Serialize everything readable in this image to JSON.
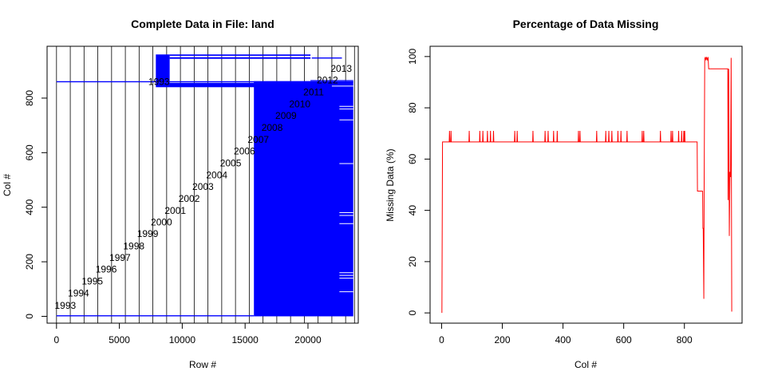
{
  "chart_data": [
    {
      "type": "heatmap",
      "title": "Complete Data in File: land",
      "xlabel": "Row #",
      "ylabel": "Col #",
      "xlim": [
        -750,
        24000
      ],
      "ylim": [
        -25,
        990
      ],
      "xticks": [
        0,
        5000,
        10000,
        15000,
        20000
      ],
      "yticks": [
        0,
        200,
        400,
        600,
        800
      ],
      "color": "#0000ff",
      "year_boundaries": [
        0,
        1095,
        2190,
        3285,
        4380,
        5475,
        6570,
        7665,
        8760,
        9855,
        10950,
        12045,
        13140,
        14235,
        15330,
        16425,
        17520,
        18615,
        19710,
        20805,
        21900,
        22995,
        23700
      ],
      "years": [
        {
          "label": "1993",
          "row": 700,
          "col": 40
        },
        {
          "label": "1994",
          "row": 1750,
          "col": 85
        },
        {
          "label": "1995",
          "row": 2850,
          "col": 128
        },
        {
          "label": "1996",
          "row": 3950,
          "col": 172
        },
        {
          "label": "1997",
          "row": 5050,
          "col": 215
        },
        {
          "label": "1998",
          "row": 6150,
          "col": 258
        },
        {
          "label": "1999",
          "row": 7250,
          "col": 302
        },
        {
          "label": "2000",
          "row": 8350,
          "col": 345
        },
        {
          "label": "2001",
          "row": 9450,
          "col": 388
        },
        {
          "label": "2002",
          "row": 10550,
          "col": 432
        },
        {
          "label": "2003",
          "row": 11650,
          "col": 475
        },
        {
          "label": "2004",
          "row": 12750,
          "col": 518
        },
        {
          "label": "2005",
          "row": 13850,
          "col": 562
        },
        {
          "label": "2006",
          "row": 14950,
          "col": 605
        },
        {
          "label": "2007",
          "row": 16050,
          "col": 648
        },
        {
          "label": "2008",
          "row": 17150,
          "col": 692
        },
        {
          "label": "2009",
          "row": 18250,
          "col": 735
        },
        {
          "label": "2010",
          "row": 19350,
          "col": 778
        },
        {
          "label": "2011",
          "row": 20450,
          "col": 822
        },
        {
          "label": "2012",
          "row": 21550,
          "col": 865
        },
        {
          "label": "2013",
          "row": 22650,
          "col": 908
        }
      ],
      "overlap_label": {
        "label": "1993",
        "row": 8150,
        "col": 860
      },
      "data_blocks": [
        {
          "x0": 0,
          "x1": 23600,
          "y0": 858,
          "y1": 862
        },
        {
          "x0": 0,
          "x1": 15700,
          "y0": 0,
          "y1": 4
        },
        {
          "x0": 15700,
          "x1": 23600,
          "y0": 0,
          "y1": 862
        },
        {
          "x0": 7900,
          "x1": 20200,
          "y0": 840,
          "y1": 856
        },
        {
          "x0": 7900,
          "x1": 9000,
          "y0": 856,
          "y1": 960
        },
        {
          "x0": 9000,
          "x1": 20200,
          "y0": 955,
          "y1": 960
        },
        {
          "x0": 9000,
          "x1": 20200,
          "y0": 944,
          "y1": 950
        },
        {
          "x0": 20300,
          "x1": 22700,
          "y0": 945,
          "y1": 949
        },
        {
          "x0": 20200,
          "x1": 23600,
          "y0": 864,
          "y1": 866
        }
      ],
      "gap_lines": [
        {
          "x0": 22500,
          "x1": 23600,
          "y": 760
        },
        {
          "x0": 22500,
          "x1": 23600,
          "y": 770
        },
        {
          "x0": 22500,
          "x1": 23600,
          "y": 720
        },
        {
          "x0": 22500,
          "x1": 23600,
          "y": 560
        },
        {
          "x0": 22500,
          "x1": 23600,
          "y": 380
        },
        {
          "x0": 22500,
          "x1": 23600,
          "y": 370
        },
        {
          "x0": 22500,
          "x1": 23600,
          "y": 340
        },
        {
          "x0": 22500,
          "x1": 23600,
          "y": 160
        },
        {
          "x0": 22500,
          "x1": 23600,
          "y": 150
        },
        {
          "x0": 22500,
          "x1": 23600,
          "y": 140
        },
        {
          "x0": 22500,
          "x1": 23600,
          "y": 90
        },
        {
          "x0": 21900,
          "x1": 23600,
          "y": 844
        }
      ]
    },
    {
      "type": "line",
      "title": "Percentage of Data Missing",
      "xlabel": "Col #",
      "ylabel": "Missing Data (%)",
      "xlim": [
        -38,
        990
      ],
      "ylim": [
        -4,
        104
      ],
      "xticks": [
        0,
        200,
        400,
        600,
        800
      ],
      "yticks": [
        0,
        20,
        40,
        60,
        80,
        100
      ],
      "color": "#ff0000",
      "points": [
        [
          1,
          0
        ],
        [
          3,
          66.7
        ],
        [
          25,
          66.7
        ],
        [
          26,
          71
        ],
        [
          27,
          66.7
        ],
        [
          30,
          66.7
        ],
        [
          31,
          71
        ],
        [
          32,
          66.7
        ],
        [
          90,
          66.7
        ],
        [
          91,
          71
        ],
        [
          92,
          66.7
        ],
        [
          125,
          66.7
        ],
        [
          126,
          71
        ],
        [
          127,
          66.7
        ],
        [
          135,
          66.7
        ],
        [
          136,
          71
        ],
        [
          137,
          66.7
        ],
        [
          150,
          66.7
        ],
        [
          151,
          71
        ],
        [
          152,
          66.7
        ],
        [
          160,
          66.7
        ],
        [
          161,
          71
        ],
        [
          162,
          66.7
        ],
        [
          170,
          66.7
        ],
        [
          171,
          71
        ],
        [
          172,
          66.7
        ],
        [
          240,
          66.7
        ],
        [
          241,
          71
        ],
        [
          242,
          66.7
        ],
        [
          248,
          66.7
        ],
        [
          249,
          71
        ],
        [
          250,
          66.7
        ],
        [
          300,
          66.7
        ],
        [
          301,
          71
        ],
        [
          302,
          66.7
        ],
        [
          340,
          66.7
        ],
        [
          341,
          71
        ],
        [
          342,
          66.7
        ],
        [
          350,
          66.7
        ],
        [
          351,
          71
        ],
        [
          352,
          66.7
        ],
        [
          368,
          66.7
        ],
        [
          369,
          71
        ],
        [
          370,
          66.7
        ],
        [
          380,
          66.7
        ],
        [
          381,
          71
        ],
        [
          382,
          66.7
        ],
        [
          450,
          66.7
        ],
        [
          451,
          71
        ],
        [
          452,
          66.7
        ],
        [
          455,
          66.7
        ],
        [
          456,
          71
        ],
        [
          457,
          66.7
        ],
        [
          510,
          66.7
        ],
        [
          511,
          71
        ],
        [
          512,
          66.7
        ],
        [
          540,
          66.7
        ],
        [
          541,
          71
        ],
        [
          542,
          66.7
        ],
        [
          550,
          66.7
        ],
        [
          551,
          71
        ],
        [
          552,
          66.7
        ],
        [
          560,
          66.7
        ],
        [
          561,
          71
        ],
        [
          562,
          66.7
        ],
        [
          580,
          66.7
        ],
        [
          581,
          71
        ],
        [
          582,
          66.7
        ],
        [
          590,
          66.7
        ],
        [
          591,
          71
        ],
        [
          592,
          66.7
        ],
        [
          610,
          66.7
        ],
        [
          611,
          71
        ],
        [
          612,
          66.7
        ],
        [
          660,
          66.7
        ],
        [
          661,
          71
        ],
        [
          662,
          66.7
        ],
        [
          665,
          66.7
        ],
        [
          666,
          71
        ],
        [
          667,
          66.7
        ],
        [
          720,
          66.7
        ],
        [
          721,
          71
        ],
        [
          722,
          66.7
        ],
        [
          755,
          66.7
        ],
        [
          756,
          71
        ],
        [
          757,
          66.7
        ],
        [
          760,
          66.7
        ],
        [
          761,
          71
        ],
        [
          762,
          66.7
        ],
        [
          780,
          66.7
        ],
        [
          781,
          71
        ],
        [
          782,
          66.7
        ],
        [
          790,
          66.7
        ],
        [
          791,
          71
        ],
        [
          792,
          66.7
        ],
        [
          797,
          66.7
        ],
        [
          798,
          71
        ],
        [
          799,
          66.7
        ],
        [
          800,
          66.7
        ],
        [
          801,
          71
        ],
        [
          802,
          66.7
        ],
        [
          842,
          66.7
        ],
        [
          843,
          47.5
        ],
        [
          860,
          47.5
        ],
        [
          861,
          33
        ],
        [
          862,
          33
        ],
        [
          864,
          5.5
        ],
        [
          865,
          47.5
        ],
        [
          867,
          99
        ],
        [
          869,
          99.8
        ],
        [
          871,
          98.5
        ],
        [
          873,
          99.8
        ],
        [
          876,
          98.5
        ],
        [
          878,
          99.8
        ],
        [
          880,
          95.2
        ],
        [
          943,
          95.2
        ],
        [
          944,
          44
        ],
        [
          946,
          95.2
        ],
        [
          948,
          30
        ],
        [
          950,
          55
        ],
        [
          952,
          53
        ],
        [
          954,
          99.5
        ],
        [
          956,
          0.5
        ]
      ]
    }
  ]
}
